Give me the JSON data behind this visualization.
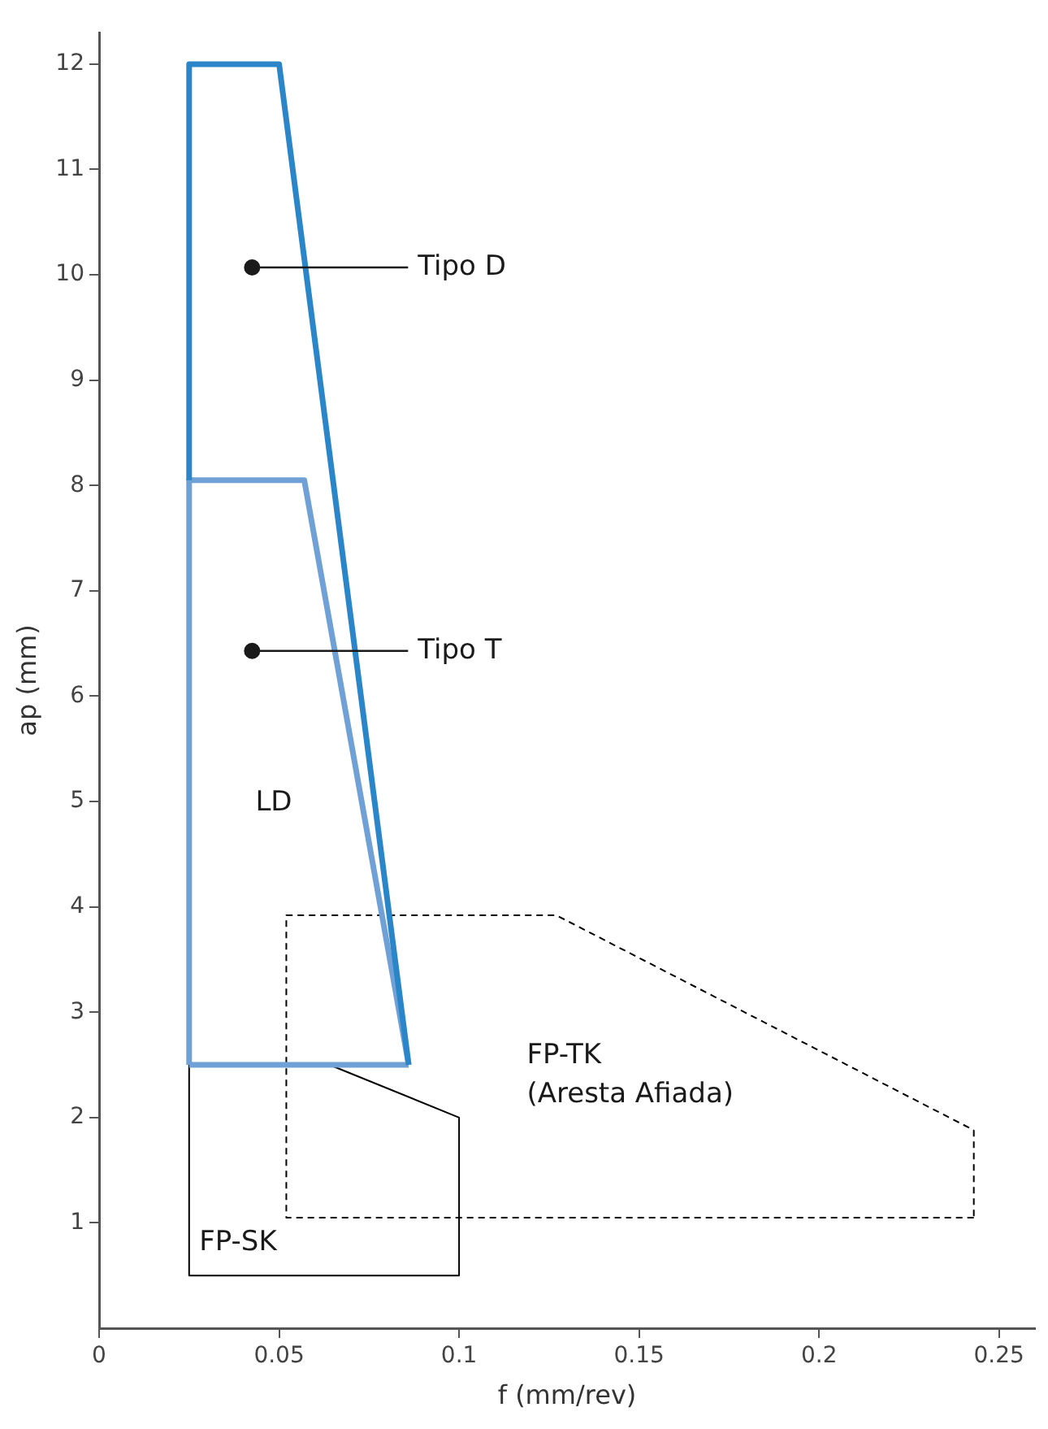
{
  "chart_data": {
    "type": "line",
    "xlabel": "f (mm/rev)",
    "ylabel": "ap (mm)",
    "xlim": [
      0,
      0.26
    ],
    "ylim": [
      0,
      12.3
    ],
    "xticks": [
      0,
      0.05,
      0.1,
      0.15,
      0.2,
      0.25
    ],
    "yticks": [
      1,
      2,
      3,
      4,
      5,
      6,
      7,
      8,
      9,
      10,
      11,
      12
    ],
    "grid": false,
    "legend": false,
    "marker": "none",
    "series": [
      {
        "color": "#2a86c8",
        "x": [
          0.025,
          0.025,
          0.05,
          0.086
        ],
        "values": [
          8.05,
          12,
          12,
          2.5
        ]
      },
      {
        "color": "#6fa0d6",
        "x": [
          0.025,
          0.025,
          0.057,
          0.086
        ],
        "values": [
          2.5,
          8.05,
          8.05,
          2.5
        ]
      },
      {
        "color": "#6fa0d6",
        "x": [
          0.086,
          0.025
        ],
        "values": [
          2.5,
          2.5
        ]
      },
      {
        "color": "#000000",
        "x": [
          0.025,
          0.025,
          0.1,
          0.1,
          0.064
        ],
        "values": [
          2.5,
          0.5,
          0.5,
          2.0,
          2.5
        ]
      },
      {
        "color": "#000000",
        "line_style": "dashed",
        "x": [
          0.243,
          0.052,
          0.052,
          0.127,
          0.243
        ],
        "values": [
          1.05,
          1.05,
          3.92,
          3.92,
          1.88
        ]
      },
      {
        "color": "#000000",
        "line_style": "dashed",
        "x": [
          0.243,
          0.243
        ],
        "values": [
          1.88,
          1.05
        ]
      }
    ],
    "annotations": [
      {
        "text": "Tipo D",
        "x": 0.0425,
        "y": 10.07
      },
      {
        "text": "Tipo T",
        "x": 0.0425,
        "y": 6.43
      },
      "LD",
      "FP-TK\n(Aresta Afiada)",
      "FP-SK"
    ]
  }
}
